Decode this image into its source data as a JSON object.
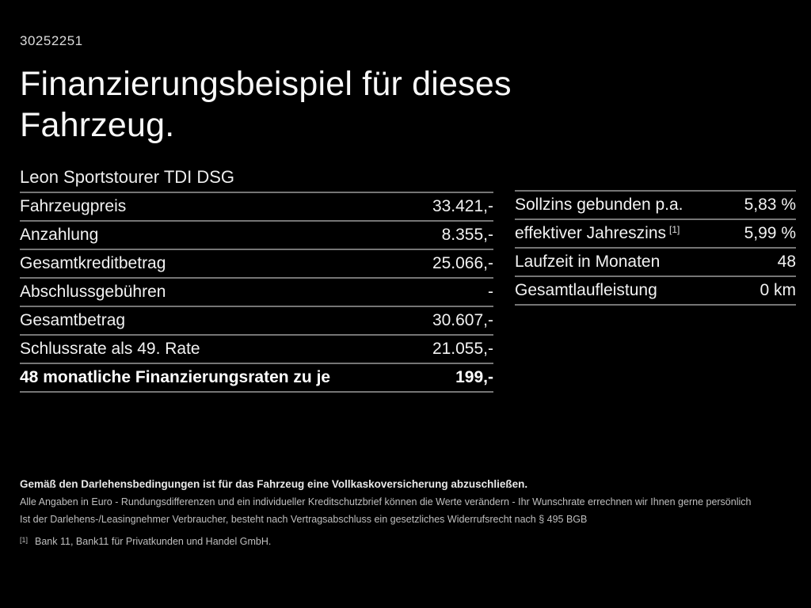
{
  "ref_number": "30252251",
  "title": {
    "line1": "Finanzierungsbeispiel für dieses",
    "line2": "Fahrzeug."
  },
  "vehicle_model": "Leon Sportstourer TDI DSG",
  "left_table": {
    "rows": [
      {
        "label": "Fahrzeugpreis",
        "value": "33.421,-"
      },
      {
        "label": "Anzahlung",
        "value": "8.355,-"
      },
      {
        "label": "Gesamtkreditbetrag",
        "value": "25.066,-"
      },
      {
        "label": "Abschlussgebühren",
        "value": "-"
      },
      {
        "label": "Gesamtbetrag",
        "value": "30.607,-"
      },
      {
        "label": "Schlussrate als 49. Rate",
        "value": "21.055,-"
      },
      {
        "label": "48 monatliche Finanzierungsraten zu je",
        "value": "199,-"
      }
    ]
  },
  "right_table": {
    "rows": [
      {
        "label": "Sollzins gebunden p.a.",
        "value": "5,83 %"
      },
      {
        "label": "effektiver Jahreszins",
        "marker": "[1]",
        "value": "5,99 %"
      },
      {
        "label": "Laufzeit in Monaten",
        "value": "48"
      },
      {
        "label": "Gesamtlaufleistung",
        "value": "0 km"
      }
    ]
  },
  "footer": {
    "insurance_note": "Gemäß den Darlehensbedingungen ist für das Fahrzeug eine Vollkaskoversicherung abzuschließen.",
    "disclaimer1": "Alle Angaben in Euro - Rundungsdifferenzen und ein individueller Kreditschutzbrief können die Werte verändern - Ihr Wunschrate errechnen wir Ihnen gerne persönlich",
    "disclaimer2": "Ist der Darlehens-/Leasingnehmer Verbraucher, besteht nach Vertragsabschluss ein gesetzliches Widerrufsrecht nach § 495 BGB",
    "footnote_marker": "[1]",
    "footnote_text": "Bank 11, Bank11 für Privatkunden und Handel GmbH."
  },
  "colors": {
    "background": "#000000",
    "text_primary": "#f2f2f2",
    "text_muted": "#bfbfbf",
    "divider": "#757575"
  }
}
